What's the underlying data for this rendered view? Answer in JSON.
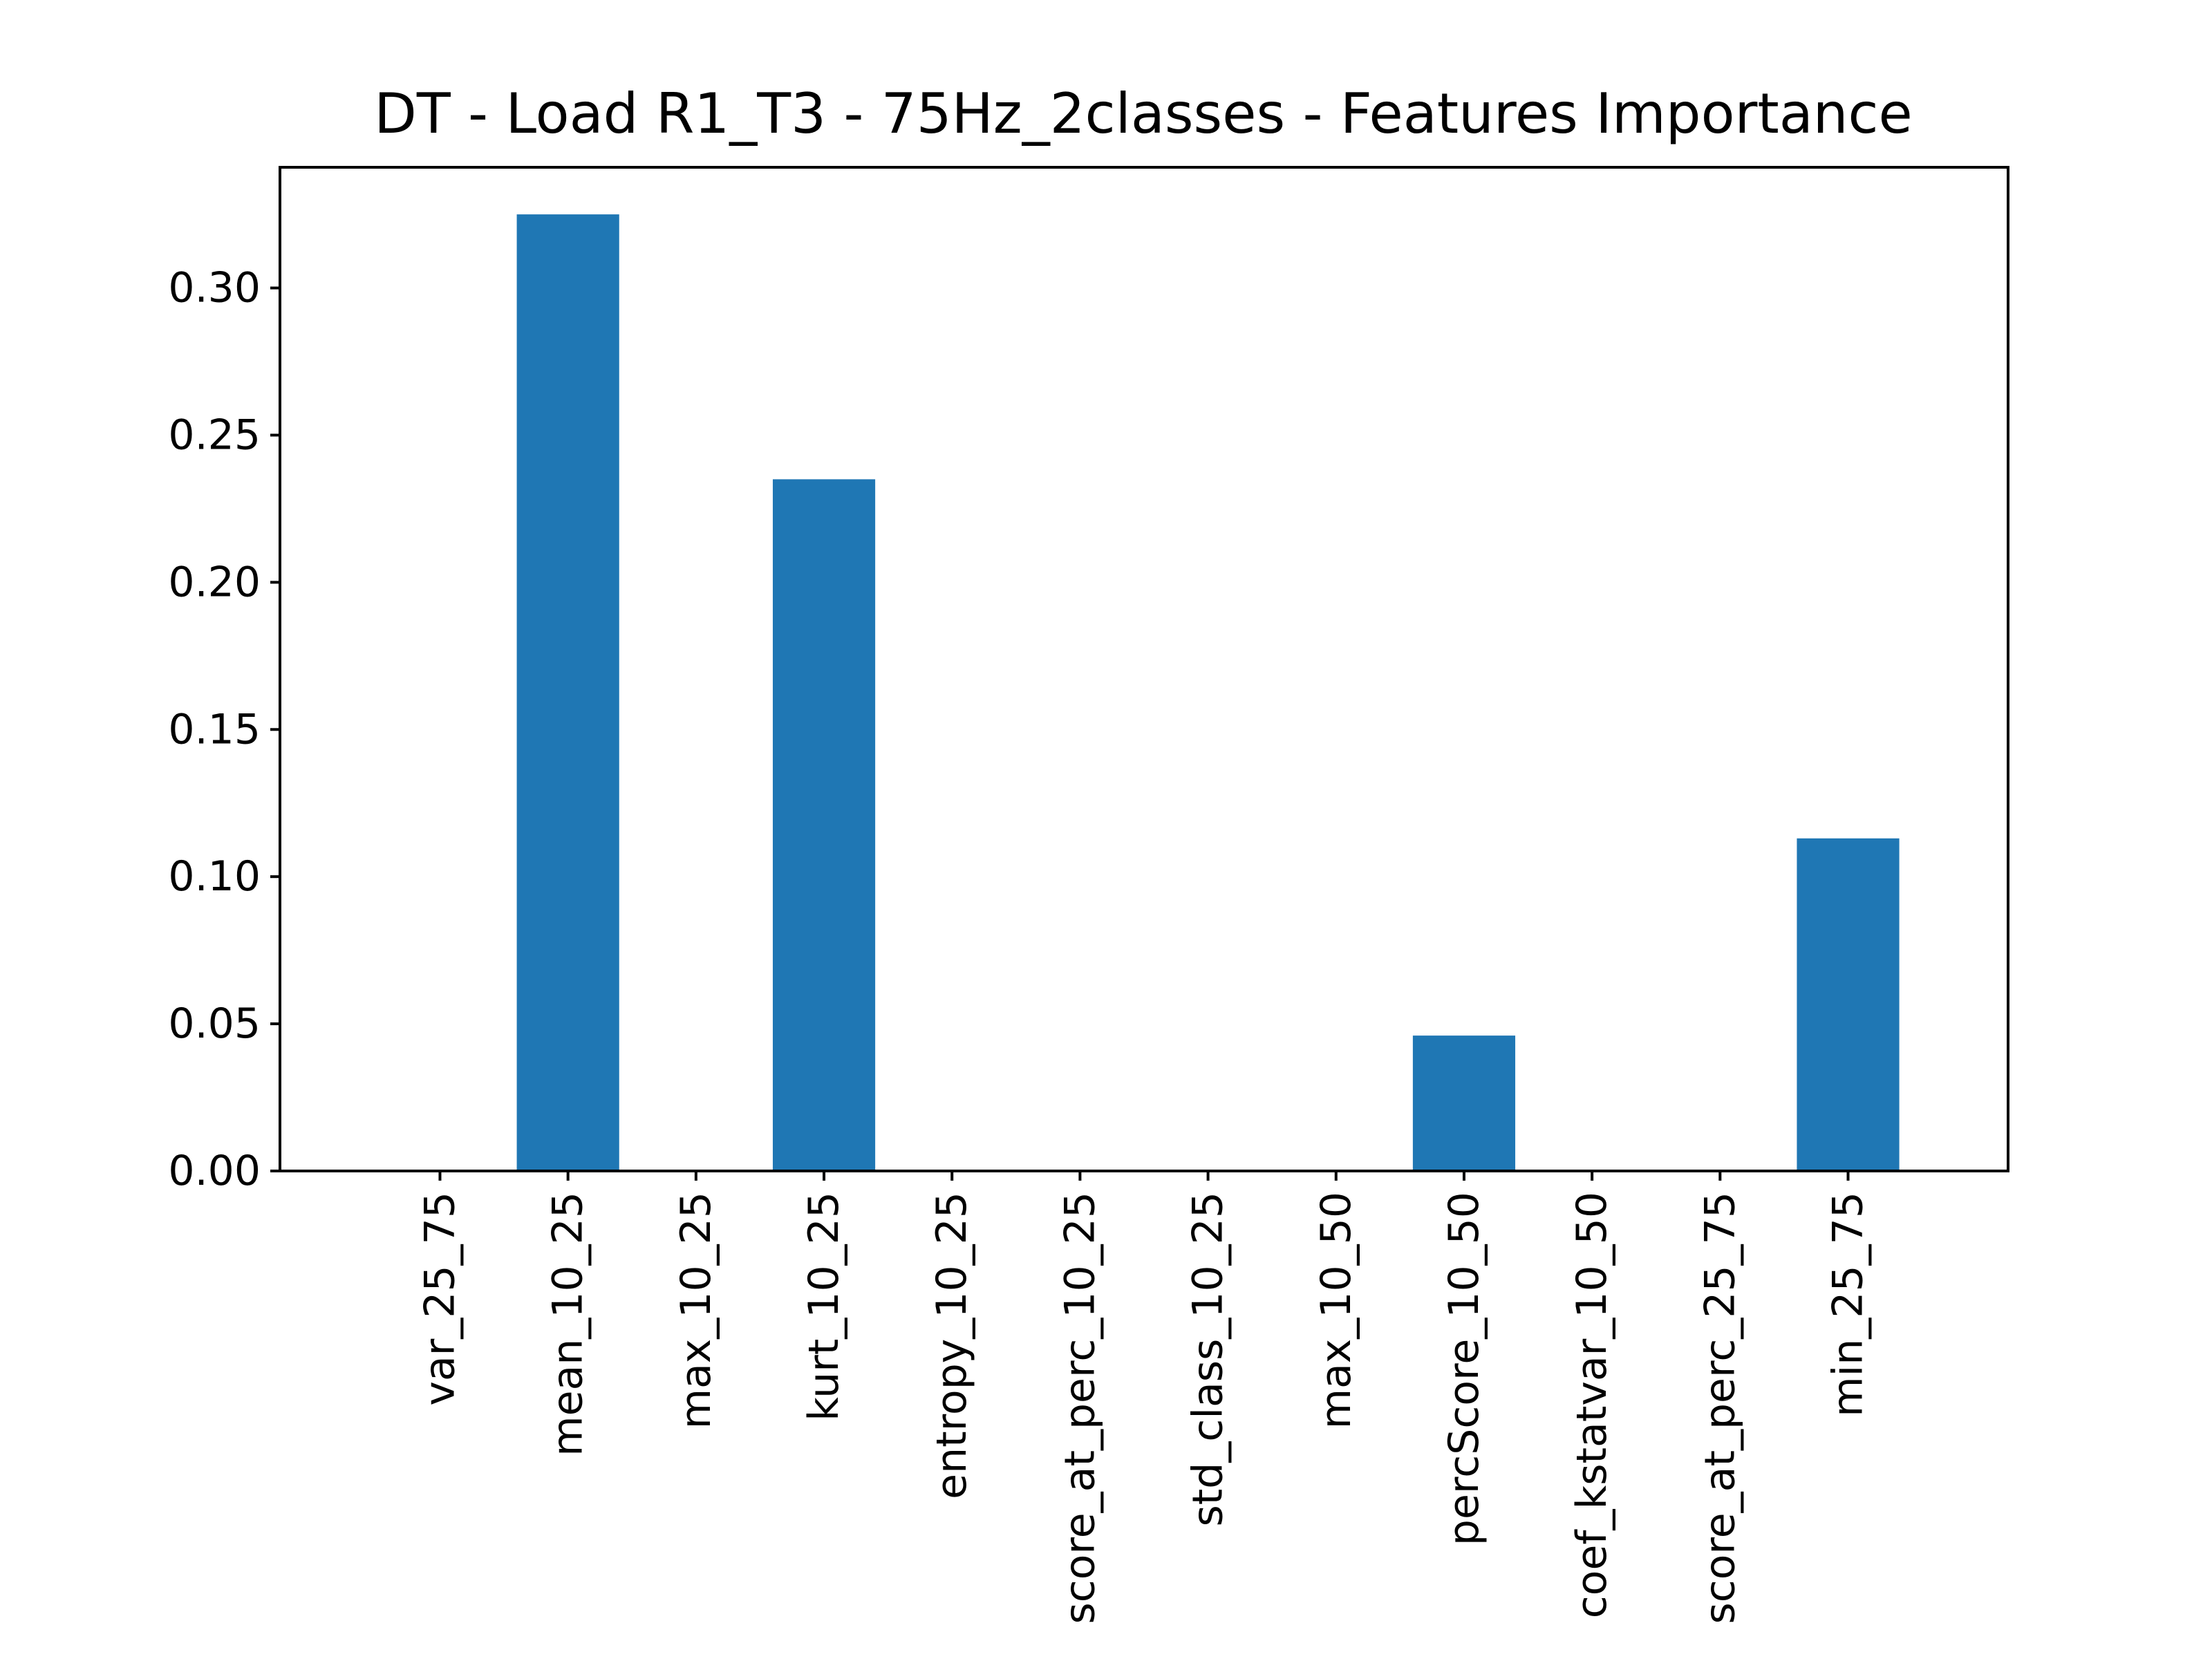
{
  "chart_data": {
    "type": "bar",
    "title": "DT - Load R1_T3 - 75Hz_2classes - Features Importance",
    "xlabel": "",
    "ylabel": "",
    "categories": [
      "var_25_75",
      "mean_10_25",
      "max_10_25",
      "kurt_10_25",
      "entropy_10_25",
      "score_at_perc_10_25",
      "std_class_10_25",
      "max_10_50",
      "percScore_10_50",
      "coef_kstatvar_10_50",
      "score_at_perc_25_75",
      "min_25_75"
    ],
    "values": [
      0.0,
      0.325,
      0.0,
      0.235,
      0.0,
      0.0,
      0.0,
      0.0,
      0.046,
      0.0,
      0.0,
      0.113
    ],
    "ylim": [
      0.0,
      0.341
    ],
    "yticks": [
      "0.00",
      "0.05",
      "0.10",
      "0.15",
      "0.20",
      "0.25",
      "0.30"
    ],
    "bar_color": "#1f77b4",
    "grid": false,
    "legend": "none"
  }
}
